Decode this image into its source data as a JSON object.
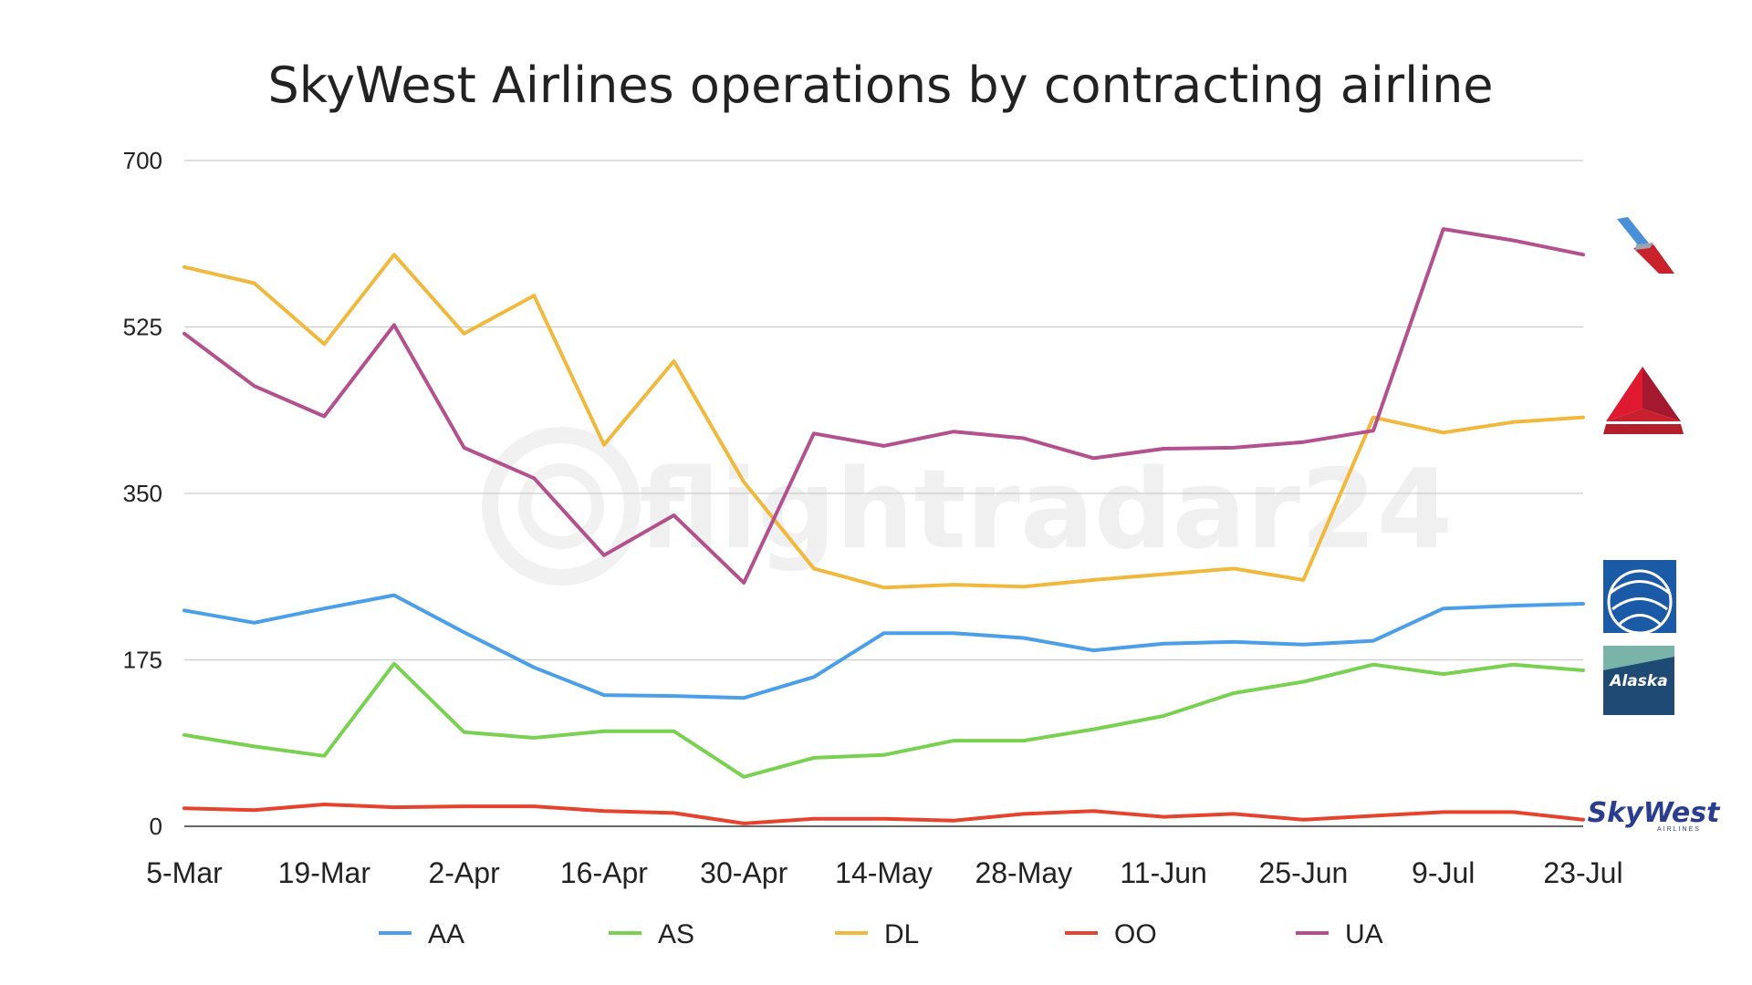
{
  "chart_data": {
    "type": "line",
    "title": "SkyWest Airlines operations by contracting airline",
    "xlabel": "",
    "ylabel": "",
    "x": [
      "5-Mar",
      "12-Mar",
      "19-Mar",
      "26-Mar",
      "2-Apr",
      "9-Apr",
      "16-Apr",
      "23-Apr",
      "30-Apr",
      "7-May",
      "14-May",
      "21-May",
      "28-May",
      "4-Jun",
      "11-Jun",
      "18-Jun",
      "25-Jun",
      "2-Jul",
      "9-Jul",
      "16-Jul",
      "23-Jul"
    ],
    "x_tick_labels": [
      "5-Mar",
      "19-Mar",
      "2-Apr",
      "16-Apr",
      "30-Apr",
      "14-May",
      "28-May",
      "11-Jun",
      "25-Jun",
      "9-Jul",
      "23-Jul"
    ],
    "yticks": [
      0,
      175,
      350,
      525,
      700
    ],
    "ylim": [
      0,
      700
    ],
    "grid": true,
    "legend_position": "bottom",
    "series": [
      {
        "name": "AA",
        "color": "#4a9fe8",
        "values": [
          227,
          214,
          229,
          243,
          204,
          167,
          138,
          137,
          135,
          157,
          203,
          203,
          198,
          185,
          192,
          194,
          191,
          195,
          229,
          232,
          234
        ]
      },
      {
        "name": "AS",
        "color": "#79d152",
        "values": [
          96,
          84,
          74,
          171,
          99,
          93,
          100,
          100,
          52,
          72,
          75,
          90,
          90,
          102,
          116,
          140,
          152,
          170,
          160,
          170,
          164
        ]
      },
      {
        "name": "DL",
        "color": "#f0b93e",
        "values": [
          588,
          571,
          507,
          601,
          518,
          558,
          401,
          489,
          362,
          271,
          251,
          254,
          252,
          259,
          265,
          271,
          259,
          430,
          414,
          425,
          430
        ]
      },
      {
        "name": "OO",
        "color": "#e5432e",
        "values": [
          19,
          17,
          23,
          20,
          21,
          21,
          16,
          14,
          3,
          8,
          8,
          6,
          13,
          16,
          10,
          13,
          7,
          11,
          15,
          15,
          7
        ]
      },
      {
        "name": "UA",
        "color": "#b3508e",
        "values": [
          518,
          463,
          431,
          527,
          398,
          366,
          285,
          327,
          256,
          413,
          400,
          415,
          408,
          387,
          397,
          398,
          404,
          416,
          628,
          616,
          601
        ]
      }
    ],
    "watermark": "flightradar24",
    "logos": [
      "american-airlines-logo",
      "delta-logo",
      "united-logo",
      "alaska-logo",
      "skywest-logo"
    ],
    "logo_text": {
      "alaska": "Alaska",
      "skywest": "SkyWest",
      "skywest_sub": "AIRLINES"
    }
  }
}
